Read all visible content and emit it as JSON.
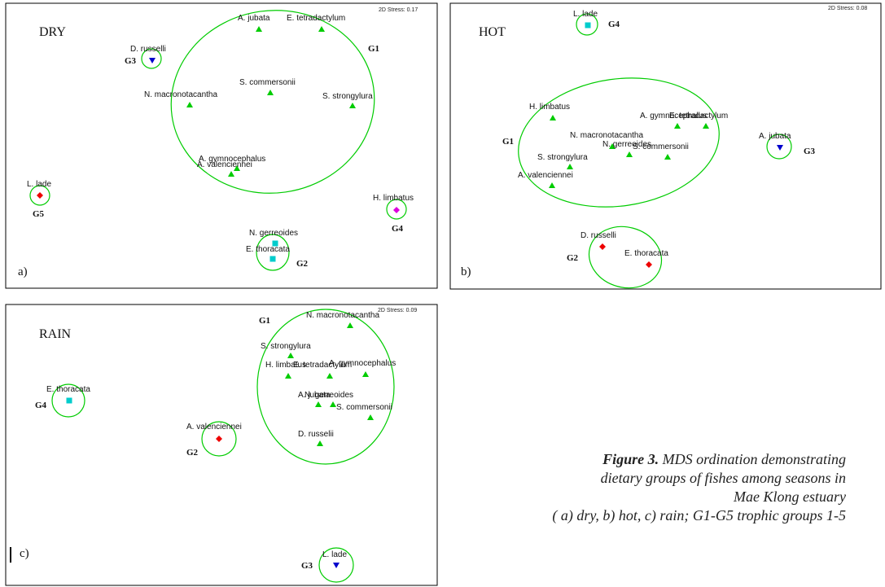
{
  "panels": [
    {
      "id": "a",
      "season": "DRY",
      "stress": "2D Stress: 0.17",
      "panel_label": "a)",
      "points": [
        {
          "label": "A. jubata",
          "marker": "triangle",
          "color": "#00cc00"
        },
        {
          "label": "E. tetradactylum",
          "marker": "triangle",
          "color": "#00cc00"
        },
        {
          "label": "D. russelli",
          "marker": "triangle-down",
          "color": "#0000cc"
        },
        {
          "label": "S. commersonii",
          "marker": "triangle",
          "color": "#00cc00"
        },
        {
          "label": "N. macronotacantha",
          "marker": "triangle",
          "color": "#00cc00"
        },
        {
          "label": "S. strongylura",
          "marker": "triangle",
          "color": "#00cc00"
        },
        {
          "label": "A. gymnocephalus",
          "marker": "triangle",
          "color": "#00cc00"
        },
        {
          "label": "A. valenciennei",
          "marker": "triangle",
          "color": "#00cc00"
        },
        {
          "label": "L. lade",
          "marker": "diamond",
          "color": "#ee0000"
        },
        {
          "label": "H. limbatus",
          "marker": "diamond",
          "color": "#dd00dd"
        },
        {
          "label": "N. gerreoides",
          "marker": "square",
          "color": "#00cccc"
        },
        {
          "label": "E. thoracata",
          "marker": "square",
          "color": "#00cccc"
        }
      ],
      "groups": [
        "G1",
        "G3",
        "G5",
        "G4",
        "G2"
      ]
    },
    {
      "id": "b",
      "season": "HOT",
      "stress": "2D Stress: 0.08",
      "panel_label": "b)",
      "points": [
        {
          "label": "L. lade",
          "marker": "square",
          "color": "#00cccc"
        },
        {
          "label": "H. limbatus",
          "marker": "triangle",
          "color": "#00cc00"
        },
        {
          "label": "A. gymnocephalus",
          "marker": "triangle",
          "color": "#00cc00"
        },
        {
          "label": "E. tetradactylum",
          "marker": "triangle",
          "color": "#00cc00"
        },
        {
          "label": "N. macronotacantha",
          "marker": "triangle",
          "color": "#00cc00"
        },
        {
          "label": "N. gerreoides",
          "marker": "triangle",
          "color": "#00cc00"
        },
        {
          "label": "S. commersonii",
          "marker": "triangle",
          "color": "#00cc00"
        },
        {
          "label": "S. strongylura",
          "marker": "triangle",
          "color": "#00cc00"
        },
        {
          "label": "A. valenciennei",
          "marker": "triangle",
          "color": "#00cc00"
        },
        {
          "label": "A. jubata",
          "marker": "triangle-down",
          "color": "#0000cc"
        },
        {
          "label": "D. russelli",
          "marker": "diamond",
          "color": "#ee0000"
        },
        {
          "label": "E. thoracata",
          "marker": "diamond",
          "color": "#ee0000"
        }
      ],
      "groups": [
        "G4",
        "G1",
        "G3",
        "G2"
      ]
    },
    {
      "id": "c",
      "season": "RAIN",
      "stress": "2D Stress: 0.09",
      "panel_label": "c)",
      "points": [
        {
          "label": "N. macronotacantha",
          "marker": "triangle",
          "color": "#00cc00"
        },
        {
          "label": "S. strongylura",
          "marker": "triangle",
          "color": "#00cc00"
        },
        {
          "label": "H. limbatus",
          "marker": "triangle",
          "color": "#00cc00"
        },
        {
          "label": "E. tetradactylum",
          "marker": "triangle",
          "color": "#00cc00"
        },
        {
          "label": "A. gymnocephalus",
          "marker": "triangle",
          "color": "#00cc00"
        },
        {
          "label": "A. jubata",
          "marker": "triangle",
          "color": "#00cc00"
        },
        {
          "label": "N. gerreoides",
          "marker": "triangle",
          "color": "#00cc00"
        },
        {
          "label": "S. commersonii",
          "marker": "triangle",
          "color": "#00cc00"
        },
        {
          "label": "D. russelii",
          "marker": "triangle",
          "color": "#00cc00"
        },
        {
          "label": "E. thoracata",
          "marker": "square",
          "color": "#00cccc"
        },
        {
          "label": "A. valenciennei",
          "marker": "diamond",
          "color": "#ee0000"
        },
        {
          "label": "L. lade",
          "marker": "triangle-down",
          "color": "#0000cc"
        }
      ],
      "groups": [
        "G1",
        "G4",
        "G2",
        "G3"
      ]
    }
  ],
  "caption": {
    "figure_label": "Figure 3.",
    "line1": "MDS ordination demonstrating",
    "line2": "dietary groups of fishes among seasons in",
    "line3": "Mae Klong estuary",
    "line4": "( a) dry, b) hot, c) rain; G1-G5 trophic groups 1-5"
  },
  "colors": {
    "ellipse": "#00cc00",
    "frame": "#000000"
  }
}
